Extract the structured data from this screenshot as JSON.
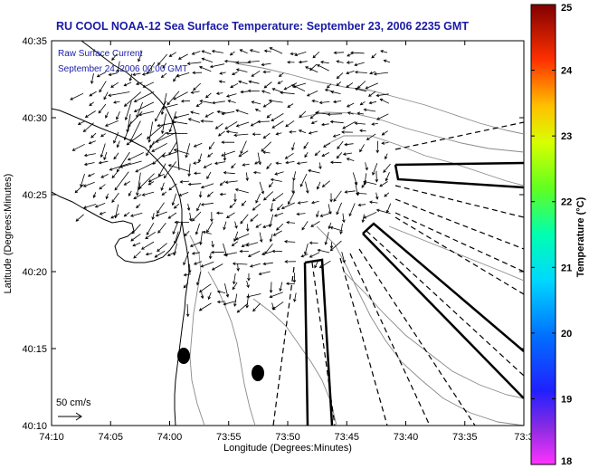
{
  "title": "RU COOL  NOAA-12  Sea Surface Temperature:  September 23, 2006 2235 GMT",
  "annotation": {
    "line1": "Raw Surface Current",
    "line2": "September 24, 2006 00:00 GMT"
  },
  "scale_label": "50 cm/s",
  "axes": {
    "xlabel": "Longitude (Degrees:Minutes)",
    "ylabel": "Latitude (Degrees:Minutes)",
    "x_ticks": [
      "74:10",
      "74:05",
      "74:00",
      "73:55",
      "73:50",
      "73:45",
      "73:40",
      "73:35",
      "73:3"
    ],
    "y_ticks": [
      "40:35",
      "40:30",
      "40:25",
      "40:20",
      "40:15",
      "40:10"
    ]
  },
  "colorbar": {
    "label": "Temperature (°C)",
    "ticks": [
      "25",
      "24",
      "23",
      "22",
      "21",
      "20",
      "19",
      "18"
    ],
    "range": [
      18,
      25
    ],
    "colors": [
      "#ff00ff",
      "#7f00ff",
      "#0000ff",
      "#0080ff",
      "#00ffff",
      "#00ff80",
      "#80ff00",
      "#ffff00",
      "#ff8000",
      "#ff0000",
      "#800000"
    ]
  },
  "colors": {
    "title": "#1a1aa6",
    "annotation": "#1a1aa6",
    "land": "#ffffff",
    "vectors": "#000000"
  }
}
